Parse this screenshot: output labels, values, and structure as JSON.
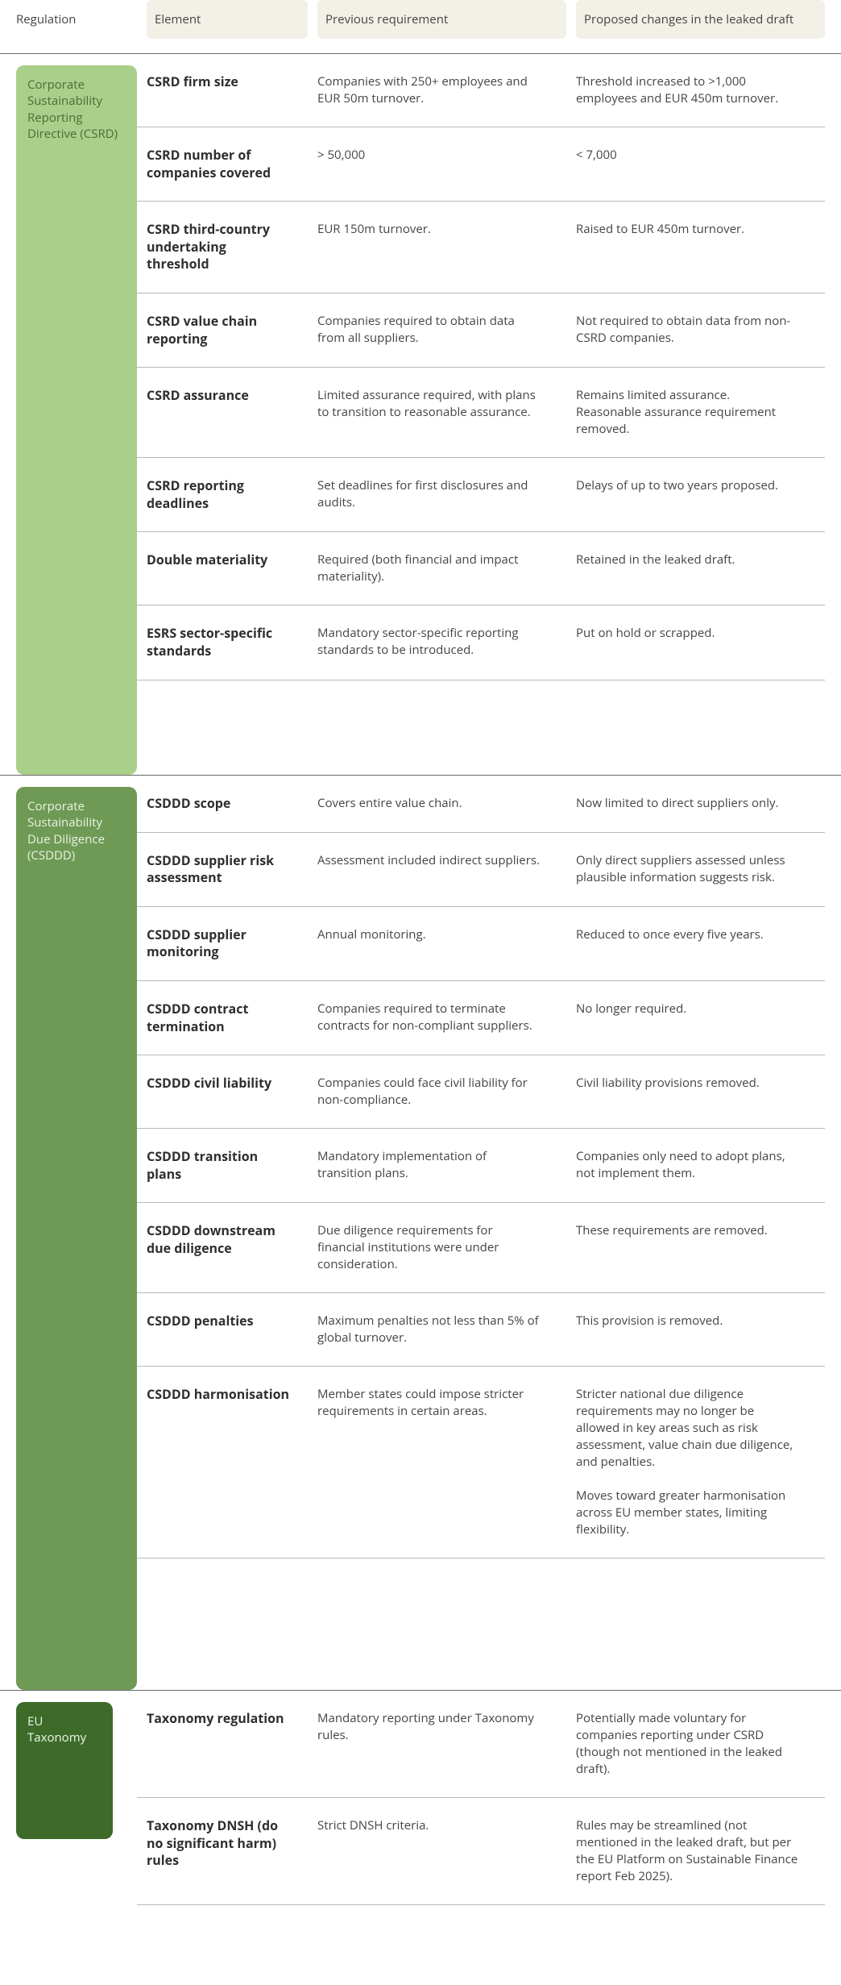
{
  "headers": {
    "regulation": "Regulation",
    "element": "Element",
    "previous": "Previous requirement",
    "proposed": "Proposed changes in the leaked draft"
  },
  "colors": {
    "csrd_bg": "#a9d08a",
    "csddd_bg": "#6f9a56",
    "eutax_bg": "#3e6b2a",
    "beige": "#f3f0e8",
    "divider": "#b9b9b9"
  },
  "sections": [
    {
      "key": "csrd",
      "label": "Corporate Sustainability Reporting Directive (CSRD)",
      "pill_class": "csrd",
      "rows": [
        {
          "element": "CSRD firm size",
          "previous": "Companies with 250+ employees and EUR 50m turnover.",
          "proposed": "Threshold increased to >1,000 employees and EUR 450m turnover."
        },
        {
          "element": "CSRD number of companies covered",
          "previous": " > 50,000",
          "proposed": " < 7,000"
        },
        {
          "element": "CSRD third-country undertaking threshold",
          "previous": "EUR 150m turnover.",
          "proposed": "Raised to EUR 450m turnover."
        },
        {
          "element": "CSRD value chain reporting",
          "previous": "Companies required to obtain data from all suppliers.",
          "proposed": "Not required to obtain data from non-CSRD companies."
        },
        {
          "element": "CSRD assurance",
          "previous": "Limited assurance required, with plans to transition to reasonable assurance.",
          "proposed": "Remains limited assurance.\nReasonable assurance requirement removed."
        },
        {
          "element": "CSRD reporting deadlines",
          "previous": "Set deadlines for first disclosures and audits.",
          "proposed": "Delays of up to two years proposed."
        },
        {
          "element": "Double materiality",
          "previous": "Required (both financial and impact materiality).",
          "proposed": "Retained in the leaked draft."
        },
        {
          "element": "ESRS sector-specific standards",
          "previous": "Mandatory sector-specific reporting standards to be introduced.",
          "proposed": "Put on hold or scrapped."
        }
      ]
    },
    {
      "key": "csddd",
      "label": "Corporate Sustainability Due Diligence (CSDDD)",
      "pill_class": "csddd",
      "rows": [
        {
          "element": "CSDDD scope",
          "previous": "Covers entire value chain.",
          "proposed": "Now limited to direct suppliers only."
        },
        {
          "element": "CSDDD supplier risk assessment",
          "previous": "Assessment included indirect suppliers.",
          "proposed": "Only direct suppliers assessed unless plausible information suggests risk."
        },
        {
          "element": "CSDDD supplier monitoring",
          "previous": "Annual monitoring.",
          "proposed": "Reduced to once every five years."
        },
        {
          "element": "CSDDD contract termination",
          "previous": "Companies required to terminate contracts for non-compliant suppliers.",
          "proposed": "No longer required."
        },
        {
          "element": "CSDDD civil liability",
          "previous": "Companies could face civil liability for non-compliance.",
          "proposed": "Civil liability provisions removed."
        },
        {
          "element": "CSDDD transition plans",
          "previous": "Mandatory implementation of transition plans.",
          "proposed": "Companies only need to adopt plans, not implement them."
        },
        {
          "element": "CSDDD downstream due diligence",
          "previous": "Due diligence requirements for financial institutions were under consideration.",
          "proposed": "These requirements are removed."
        },
        {
          "element": "CSDDD penalties",
          "previous": "Maximum penalties not less than 5% of global turnover.",
          "proposed": "This provision is removed."
        },
        {
          "element": "CSDDD harmonisation",
          "previous": "Member states could impose stricter requirements in certain areas.",
          "proposed": "Stricter national due diligence requirements may no longer be allowed in key areas such as risk assessment, value chain due diligence, and penalties.\n\nMoves toward greater harmonisation across EU member states, limiting flexibility."
        }
      ]
    },
    {
      "key": "eutax",
      "label": "EU Taxonomy",
      "pill_class": "eutax",
      "rows": [
        {
          "element": "Taxonomy regulation",
          "previous": "Mandatory reporting under Taxonomy rules.",
          "proposed": "Potentially made voluntary for companies reporting under CSRD (though not mentioned in the leaked draft)."
        },
        {
          "element": "Taxonomy DNSH (do no significant harm) rules",
          "previous": "Strict DNSH criteria.",
          "proposed": "Rules may be streamlined (not mentioned in the leaked draft, but per the EU Platform on Sustainable Finance report Feb 2025)."
        }
      ]
    }
  ]
}
